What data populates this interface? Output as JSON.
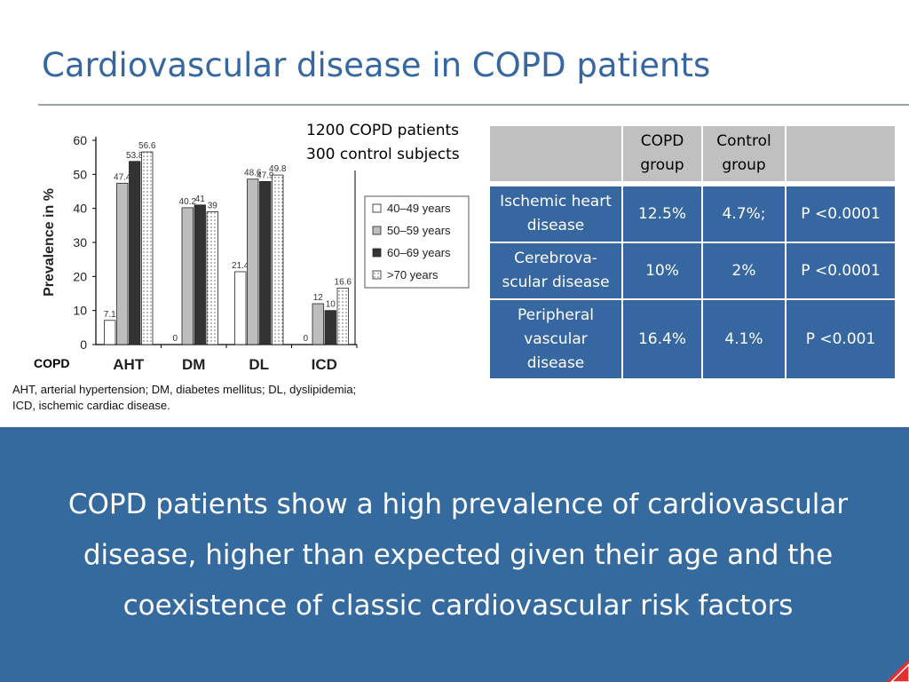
{
  "slide": {
    "title": "Cardiovascular disease in COPD patients",
    "study_info": [
      "1200 COPD patients",
      "300 control subjects"
    ],
    "copd_tag": "COPD",
    "caption": [
      "AHT, arterial hypertension; DM, diabetes mellitus; DL, dyslipidemia;",
      "ICD, ischemic cardiac disease."
    ],
    "conclusion": "COPD patients show a high prevalence of cardiovascular disease, higher than expected given their age and the coexistence of classic cardiovascular risk factors"
  },
  "colors": {
    "title": "#3767a0",
    "banner": "#356a9f",
    "table_header": "#c0c0c0",
    "table_body": "#3767a0",
    "corner_accent": "#e23030"
  },
  "table": {
    "headers": [
      "",
      "COPD group",
      "Control group",
      ""
    ],
    "rows": [
      {
        "label": "Ischemic heart disease",
        "copd": "12.5%",
        "control": "4.7%;",
        "p": "P <0.0001"
      },
      {
        "label": "Cerebrova-scular disease",
        "copd": "10%",
        "control": "2%",
        "p": "P <0.0001"
      },
      {
        "label": "Peripheral vascular disease",
        "copd": "16.4%",
        "control": "4.1%",
        "p": "P <0.001"
      }
    ]
  },
  "chart_data": {
    "type": "bar",
    "ylabel": "Prevalence in %",
    "ylim": [
      0,
      60
    ],
    "yticks": [
      "0",
      "10",
      "20",
      "30",
      "40",
      "50",
      "60"
    ],
    "categories": [
      "AHT",
      "DM",
      "DL",
      "ICD"
    ],
    "series": [
      {
        "name": "40–49 years",
        "values": [
          7.1,
          0,
          21.4,
          0
        ],
        "labels": [
          "7.1",
          "0",
          "21.4",
          "0"
        ]
      },
      {
        "name": "50–59 years",
        "values": [
          47.4,
          40.2,
          48.6,
          12
        ],
        "labels": [
          "47.4",
          "40.2",
          "48.6",
          "12"
        ]
      },
      {
        "name": "60–69 years",
        "values": [
          53.8,
          41,
          47.9,
          10
        ],
        "labels": [
          "53.8",
          "41",
          "47.9",
          "10"
        ]
      },
      {
        "name": ">70 years",
        "values": [
          56.6,
          39,
          49.8,
          16.6
        ],
        "labels": [
          "56.6",
          "39",
          "49.8",
          "16.6"
        ]
      }
    ],
    "series_fills": [
      "white",
      "light-gray",
      "dark",
      "dotted"
    ],
    "legend_position": "right",
    "grid": false
  }
}
